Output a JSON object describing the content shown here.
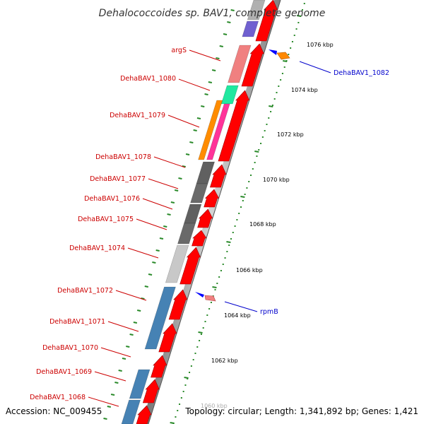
{
  "title": "Dehalococcoides sp. BAV1, complete genome",
  "footer": {
    "accession": "Accession: NC_009455",
    "summary": "Topology: circular; Length: 1,341,892 bp; Genes: 1,421"
  },
  "colors": {
    "forward_arrow": "#ff0000",
    "reverse_arrow": "#0000ff",
    "label_forward": "#cc0000",
    "label_reverse": "#0000cc",
    "tick": "#2a8a2a",
    "ring": "#888888"
  },
  "scale": {
    "unit": "kbp",
    "major_ticks": [
      {
        "label": "1076 kbp"
      },
      {
        "label": "1074 kbp"
      },
      {
        "label": "1072 kbp"
      },
      {
        "label": "1070 kbp"
      },
      {
        "label": "1068 kbp"
      },
      {
        "label": "1066 kbp"
      },
      {
        "label": "1064 kbp"
      },
      {
        "label": "1062 kbp"
      },
      {
        "label": "1060 kbp"
      }
    ]
  },
  "genes": [
    {
      "label": "argS"
    },
    {
      "label": "DehaBAV1_1080"
    },
    {
      "label": "DehaBAV1_1079"
    },
    {
      "label": "DehaBAV1_1078"
    },
    {
      "label": "DehaBAV1_1077"
    },
    {
      "label": "DehaBAV1_1076"
    },
    {
      "label": "DehaBAV1_1075"
    },
    {
      "label": "DehaBAV1_1074"
    },
    {
      "label": "DehaBAV1_1072"
    },
    {
      "label": "DehaBAV1_1071"
    },
    {
      "label": "DehaBAV1_1070"
    },
    {
      "label": "DehaBAV1_1069"
    },
    {
      "label": "DehaBAV1_1068"
    },
    {
      "label": "DehaBAV1_1082"
    },
    {
      "label": "rpmB"
    }
  ]
}
